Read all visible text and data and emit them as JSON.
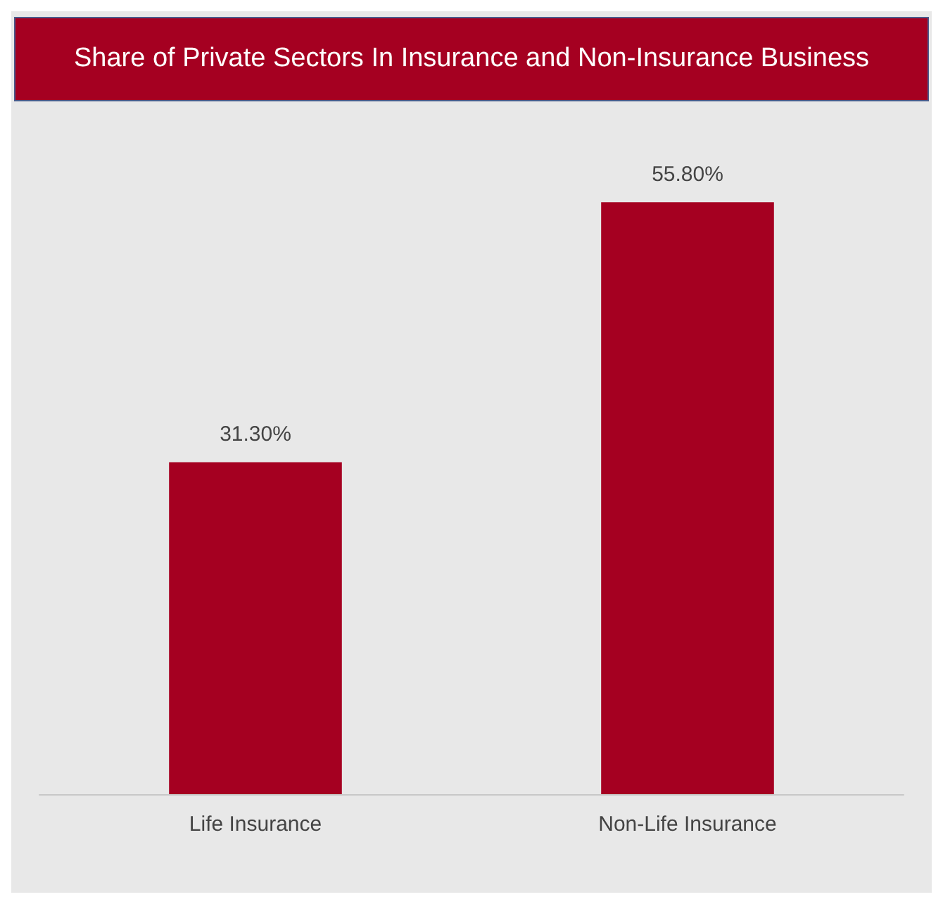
{
  "chart_data": {
    "type": "bar",
    "title": "Share of Private Sectors In Insurance and Non-Insurance Business",
    "categories": [
      "Life Insurance",
      "Non-Life Insurance"
    ],
    "values": [
      31.3,
      55.8
    ],
    "value_labels": [
      "31.30%",
      "55.80%"
    ],
    "color": "#a50021"
  }
}
